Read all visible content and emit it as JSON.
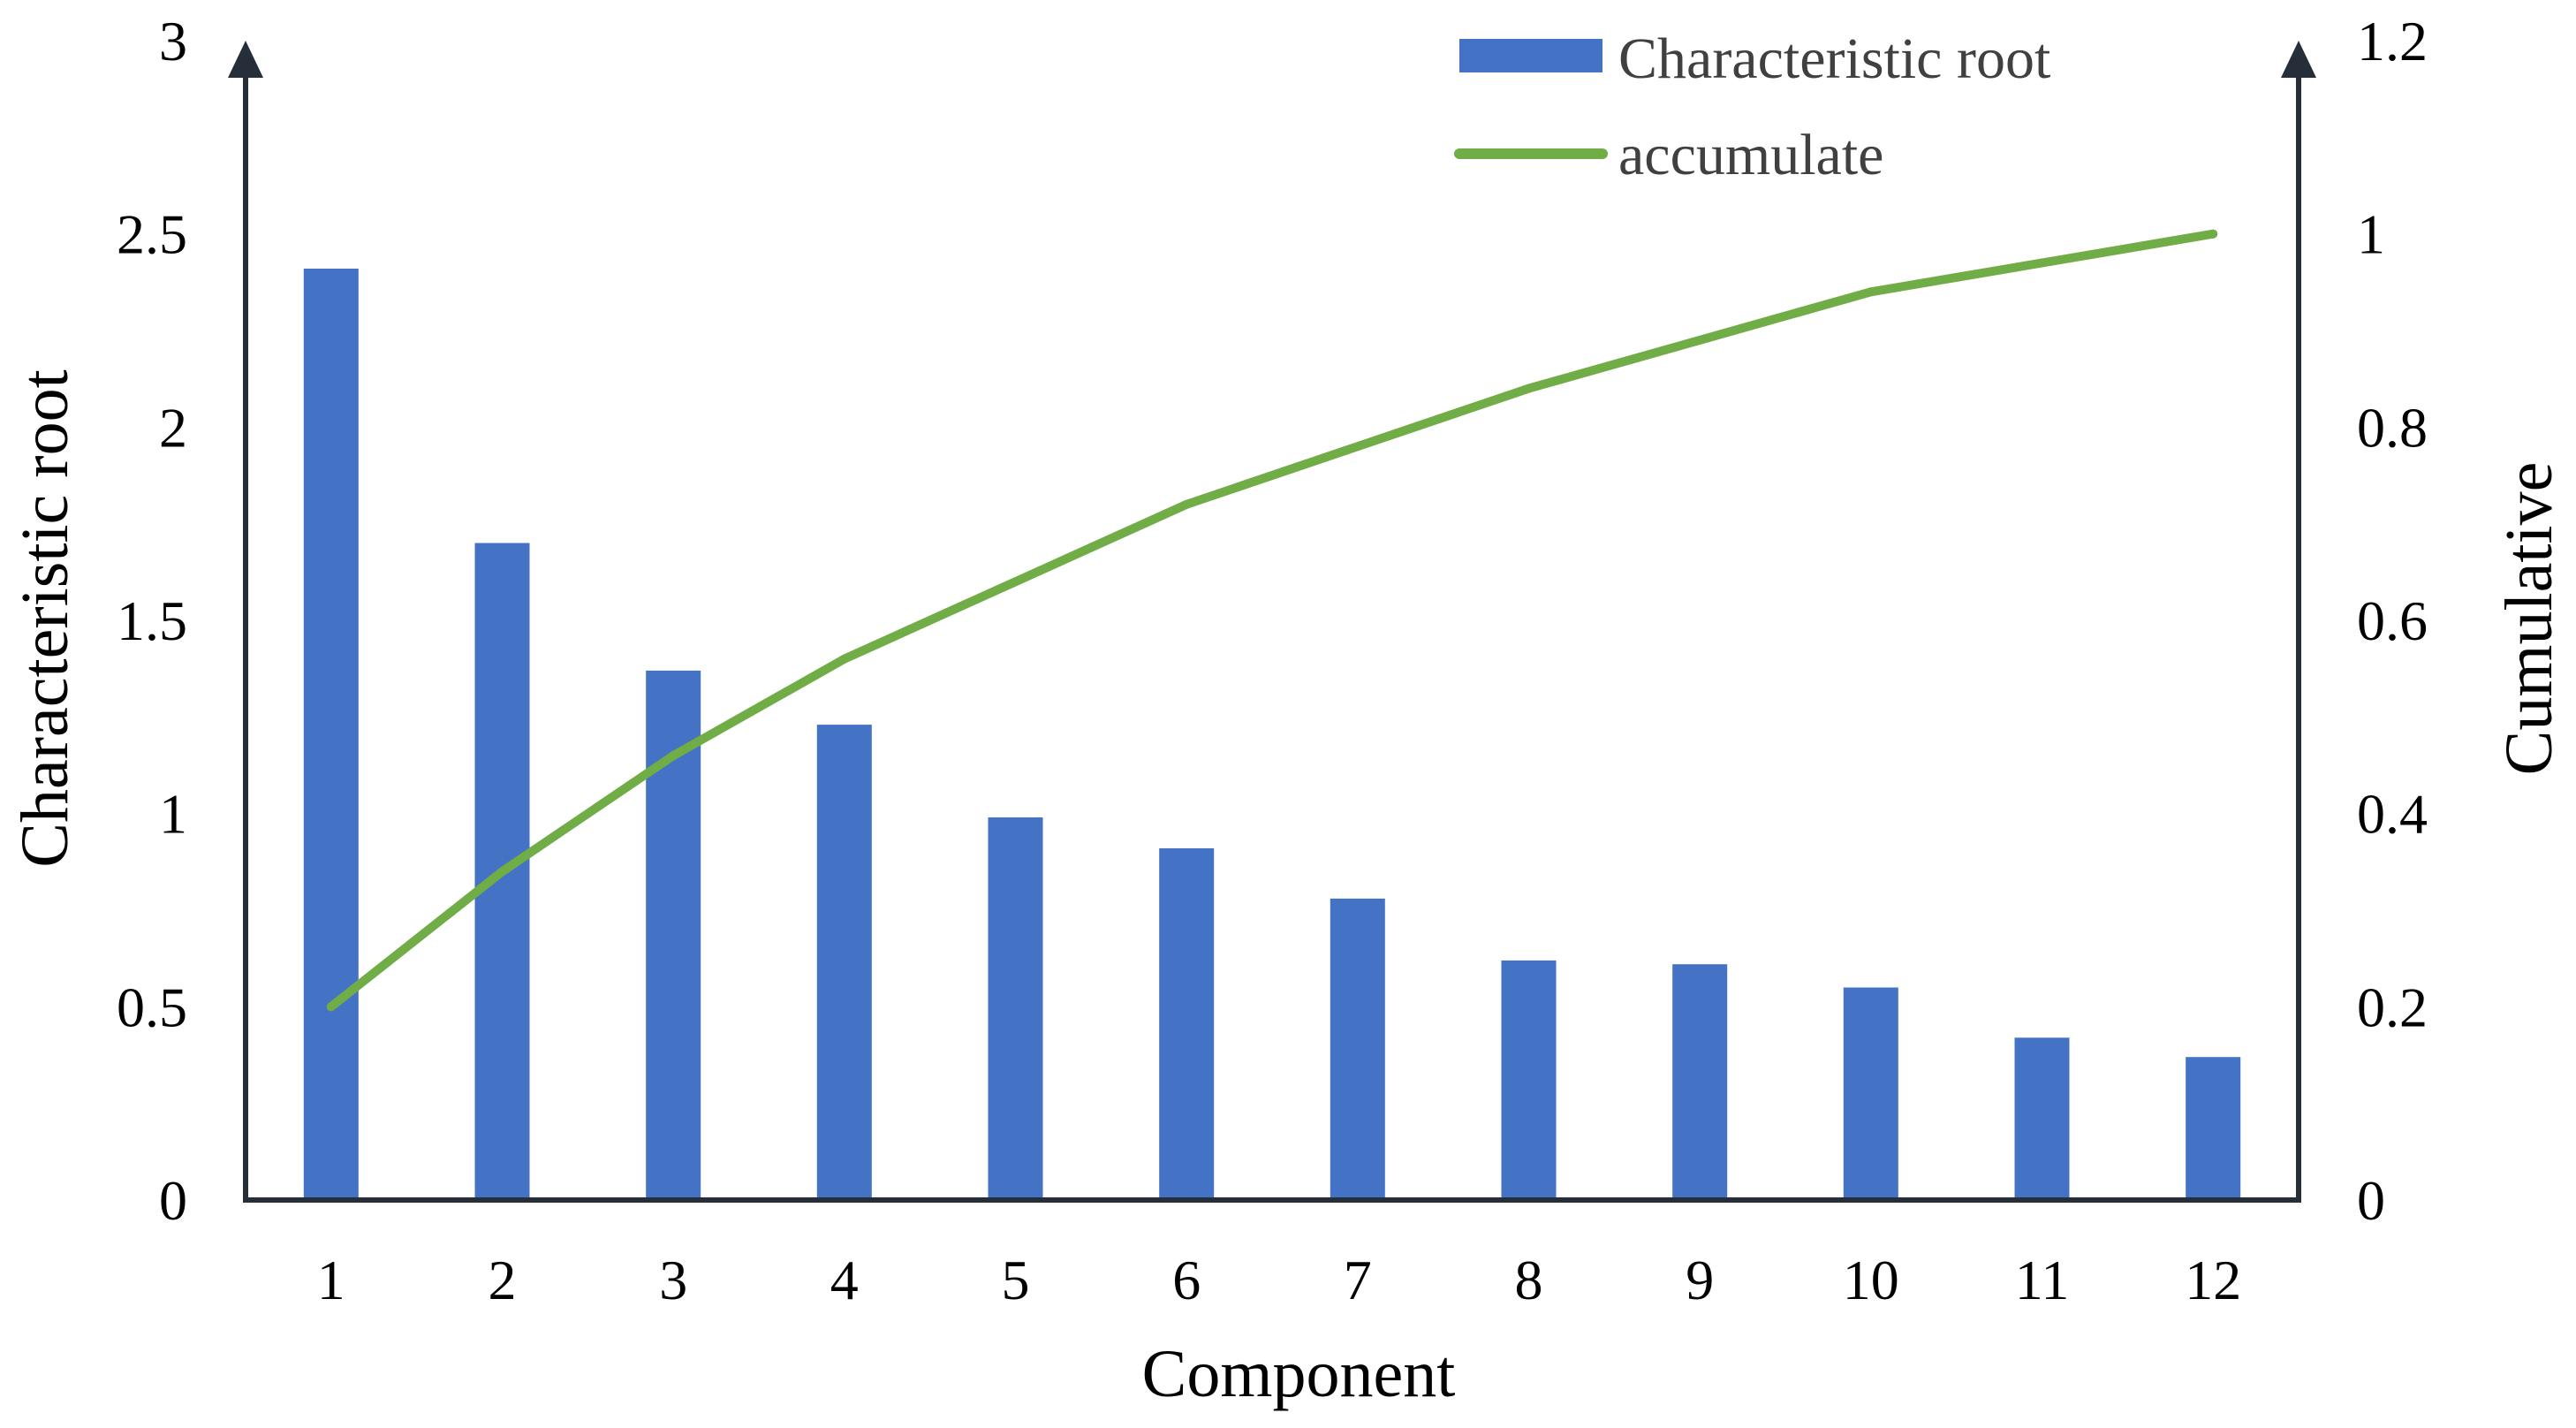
{
  "chart_data": {
    "type": "bar",
    "categories": [
      "1",
      "2",
      "3",
      "4",
      "5",
      "6",
      "7",
      "8",
      "9",
      "10",
      "11",
      "12"
    ],
    "series": [
      {
        "name": "Characteristic root",
        "type": "bar",
        "axis": "left",
        "color": "#4472C4",
        "values": [
          2.41,
          1.7,
          1.37,
          1.23,
          0.99,
          0.91,
          0.78,
          0.62,
          0.61,
          0.55,
          0.42,
          0.37
        ]
      },
      {
        "name": "accumulate",
        "type": "line",
        "axis": "right",
        "color": "#70AD47",
        "values": [
          0.2,
          0.34,
          0.46,
          0.56,
          0.64,
          0.72,
          0.78,
          0.84,
          0.89,
          0.94,
          0.97,
          1.0
        ]
      }
    ],
    "xlabel": "Component",
    "ylabel": "Characteristic root",
    "y2label": "Cumulative",
    "ylim": [
      0,
      3
    ],
    "y2lim": [
      0,
      1.2
    ],
    "yticks": [
      "0",
      "0.5",
      "1",
      "1.5",
      "2",
      "2.5",
      "3"
    ],
    "y2ticks": [
      "0",
      "0.2",
      "0.4",
      "0.6",
      "0.8",
      "1",
      "1.2"
    ],
    "legend_position": "top-right",
    "grid": false
  }
}
